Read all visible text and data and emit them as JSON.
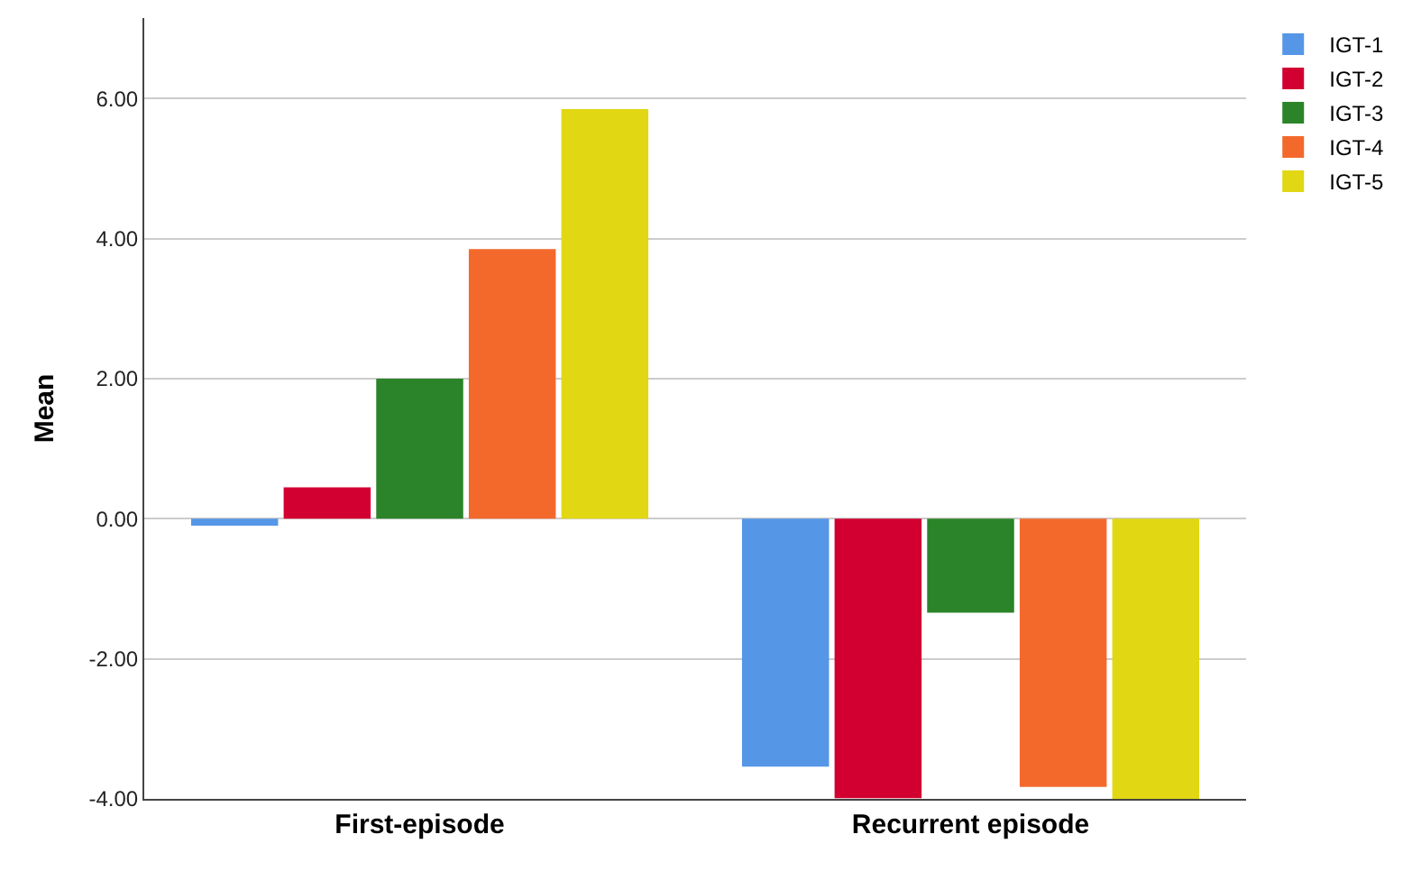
{
  "chart_data": {
    "type": "bar",
    "ylabel": "Mean",
    "categories": [
      "First-episode",
      "Recurrent episode"
    ],
    "series": [
      {
        "name": "IGT-1",
        "color": "#5596e6",
        "values": [
          -0.1,
          -3.54
        ]
      },
      {
        "name": "IGT-2",
        "color": "#d20031",
        "values": [
          0.45,
          -3.99
        ]
      },
      {
        "name": "IGT-3",
        "color": "#2b8429",
        "values": [
          2.0,
          -1.34
        ]
      },
      {
        "name": "IGT-4",
        "color": "#f3692c",
        "values": [
          3.85,
          -3.83
        ]
      },
      {
        "name": "IGT-5",
        "color": "#e1d712",
        "values": [
          5.85,
          -4.0
        ]
      }
    ],
    "ylim": [
      -4,
      7.15
    ],
    "yticks": [
      {
        "value": -4,
        "label": "-4.00"
      },
      {
        "value": -2,
        "label": "-2.00"
      },
      {
        "value": 0,
        "label": "0.00"
      },
      {
        "value": 2,
        "label": "2.00"
      },
      {
        "value": 4,
        "label": "4.00"
      },
      {
        "value": 6,
        "label": "6.00"
      }
    ],
    "grid": "y",
    "legend": "top right"
  }
}
